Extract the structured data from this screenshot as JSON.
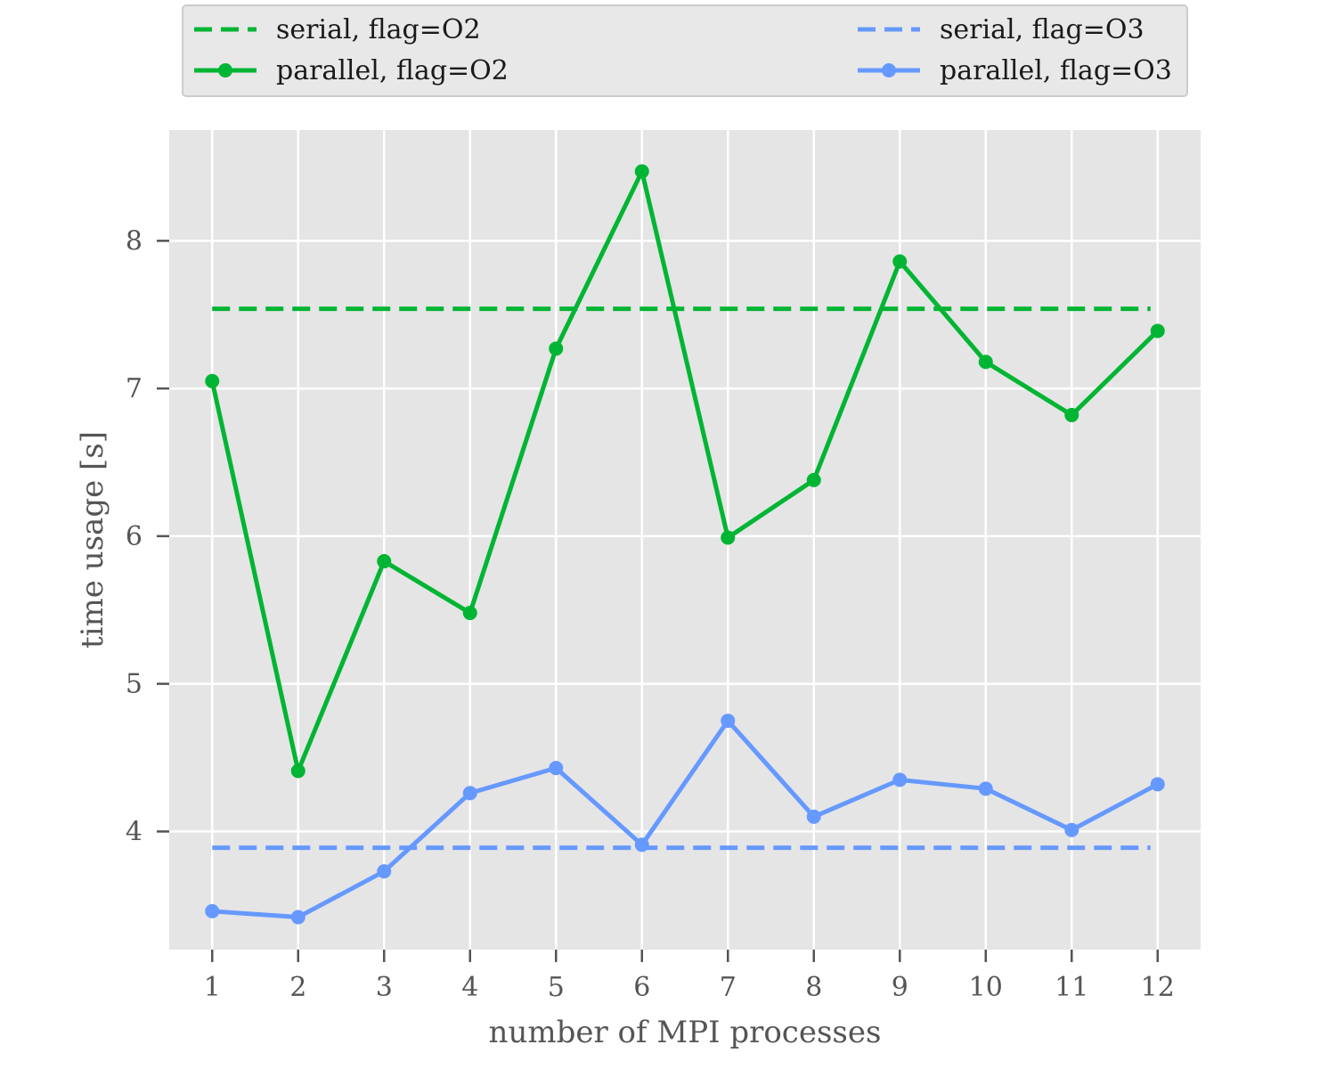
{
  "chart_data": {
    "type": "line",
    "title": "",
    "xlabel": "number of MPI processes",
    "ylabel": "time usage [s]",
    "x": [
      1,
      2,
      3,
      4,
      5,
      6,
      7,
      8,
      9,
      10,
      11,
      12
    ],
    "xlim": [
      0.5,
      12.5
    ],
    "ylim": [
      3.2,
      8.75
    ],
    "xticks": [
      "1",
      "2",
      "3",
      "4",
      "5",
      "6",
      "7",
      "8",
      "9",
      "10",
      "11",
      "12"
    ],
    "yticks": [
      "4",
      "5",
      "6",
      "7",
      "8"
    ],
    "grid": true,
    "legend_position": "top, outside plot",
    "background": "#e5e5e5",
    "series": [
      {
        "name": "serial, flag=O2",
        "style": "dashed",
        "color": "#00b533",
        "values": [
          7.54,
          7.54,
          7.54,
          7.54,
          7.54,
          7.54,
          7.54,
          7.54,
          7.54,
          7.54,
          7.54,
          7.54
        ]
      },
      {
        "name": "parallel, flag=O2",
        "style": "solid-marker",
        "color": "#00b533",
        "values": [
          7.05,
          4.41,
          5.83,
          5.48,
          7.27,
          8.47,
          5.99,
          6.38,
          7.86,
          7.18,
          6.82,
          7.39
        ]
      },
      {
        "name": "serial, flag=O3",
        "style": "dashed",
        "color": "#6699ff",
        "values": [
          3.89,
          3.89,
          3.89,
          3.89,
          3.89,
          3.89,
          3.89,
          3.89,
          3.89,
          3.89,
          3.89,
          3.89
        ]
      },
      {
        "name": "parallel, flag=O3",
        "style": "solid-marker",
        "color": "#6699ff",
        "values": [
          3.46,
          3.42,
          3.73,
          4.26,
          4.43,
          3.91,
          4.75,
          4.1,
          4.35,
          4.29,
          4.01,
          4.32
        ]
      }
    ]
  }
}
